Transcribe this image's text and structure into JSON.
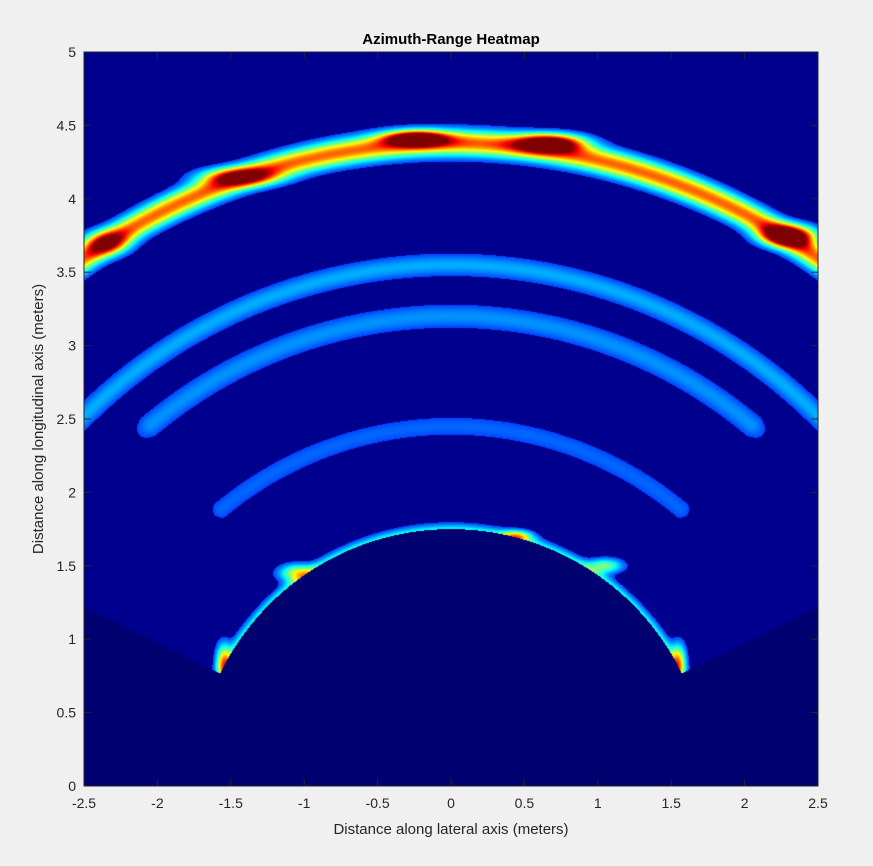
{
  "chart_data": {
    "type": "heatmap",
    "title": "Azimuth-Range Heatmap",
    "xlabel": "Distance along lateral axis (meters)",
    "ylabel": "Distance along longitudinal axis (meters)",
    "xlim": [
      -2.5,
      2.5
    ],
    "ylim": [
      0,
      5
    ],
    "x_ticks": [
      "-2.5",
      "-2",
      "-1.5",
      "-1",
      "-0.5",
      "0",
      "0.5",
      "1",
      "1.5",
      "2",
      "2.5"
    ],
    "y_ticks": [
      "0",
      "0.5",
      "1",
      "1.5",
      "2",
      "2.5",
      "3",
      "3.5",
      "4",
      "4.5",
      "5"
    ],
    "colormap": "jet",
    "background_color": "#00008f",
    "blind_region_color": "#000070",
    "fov_half_angle_deg": 64,
    "min_range_m": 1.75,
    "features": [
      {
        "kind": "arc",
        "range": 4.38,
        "theta_from": -1.35,
        "theta_to": 0.95,
        "intensity": 0.75,
        "width": 0.085
      },
      {
        "kind": "arc",
        "range": 1.72,
        "theta_from": -1.1,
        "theta_to": 1.1,
        "intensity": 0.42,
        "width": 0.06
      },
      {
        "kind": "arc",
        "range": 3.55,
        "theta_from": -0.9,
        "theta_to": 0.9,
        "intensity": 0.2,
        "width": 0.08
      },
      {
        "kind": "arc",
        "range": 3.2,
        "theta_from": -0.7,
        "theta_to": 0.7,
        "intensity": 0.17,
        "width": 0.09
      },
      {
        "kind": "arc",
        "range": 2.45,
        "theta_from": -0.7,
        "theta_to": 0.7,
        "intensity": 0.12,
        "width": 0.09
      },
      {
        "kind": "blob",
        "x": -0.24,
        "y": 4.41,
        "intensity": 1.0,
        "sx": 0.2,
        "sy": 0.05
      },
      {
        "kind": "blob",
        "x": 0.68,
        "y": 4.38,
        "intensity": 0.95,
        "sx": 0.22,
        "sy": 0.06
      },
      {
        "kind": "blob",
        "x": 2.3,
        "y": 3.75,
        "intensity": 0.95,
        "sx": 0.18,
        "sy": 0.07
      },
      {
        "kind": "blob",
        "x": -1.45,
        "y": 4.15,
        "intensity": 0.6,
        "sx": 0.25,
        "sy": 0.06
      },
      {
        "kind": "blob",
        "x": -2.35,
        "y": 3.7,
        "intensity": 0.5,
        "sx": 0.15,
        "sy": 0.08
      },
      {
        "kind": "blob",
        "x": -1.55,
        "y": 0.85,
        "intensity": 0.55,
        "sx": 0.05,
        "sy": 0.12
      },
      {
        "kind": "blob",
        "x": 1.55,
        "y": 0.85,
        "intensity": 0.55,
        "sx": 0.05,
        "sy": 0.12
      },
      {
        "kind": "blob",
        "x": -1.05,
        "y": 1.45,
        "intensity": 0.5,
        "sx": 0.12,
        "sy": 0.06
      },
      {
        "kind": "blob",
        "x": 0.45,
        "y": 1.7,
        "intensity": 0.5,
        "sx": 0.1,
        "sy": 0.04
      },
      {
        "kind": "blob",
        "x": 1.05,
        "y": 1.5,
        "intensity": 0.42,
        "sx": 0.12,
        "sy": 0.05
      }
    ]
  }
}
